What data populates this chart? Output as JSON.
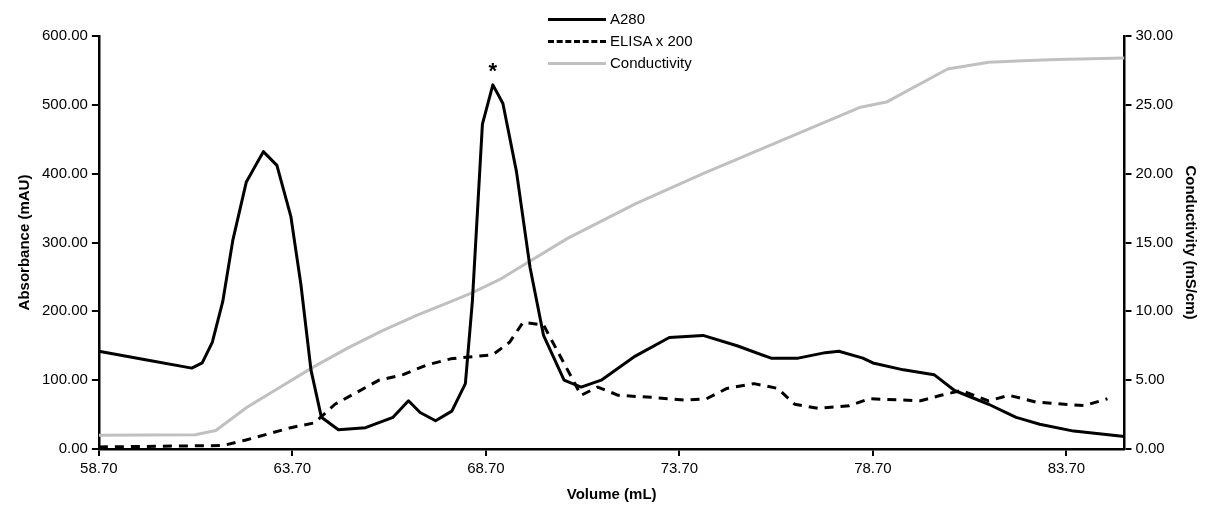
{
  "chart_data": {
    "type": "line",
    "xlabel": "Volume (mL)",
    "ylabel": "Absorbance (mAU)",
    "y2label": "Conductivity (mS/cm)",
    "xlim": [
      58.7,
      85.2
    ],
    "ylim": [
      0,
      600
    ],
    "y2lim": [
      0,
      30
    ],
    "xticks": [
      {
        "value": 58.7,
        "label": "58.70"
      },
      {
        "value": 63.7,
        "label": "63.70"
      },
      {
        "value": 68.7,
        "label": "68.70"
      },
      {
        "value": 73.7,
        "label": "73.70"
      },
      {
        "value": 78.7,
        "label": "78.70"
      },
      {
        "value": 83.7,
        "label": "83.70"
      }
    ],
    "yticks": [
      {
        "value": 0,
        "label": "0.00"
      },
      {
        "value": 100,
        "label": "100.00"
      },
      {
        "value": 200,
        "label": "200.00"
      },
      {
        "value": 300,
        "label": "300.00"
      },
      {
        "value": 400,
        "label": "400.00"
      },
      {
        "value": 500,
        "label": "500.00"
      },
      {
        "value": 600,
        "label": "600.00"
      }
    ],
    "y2ticks": [
      {
        "value": 0,
        "label": "0.00"
      },
      {
        "value": 5,
        "label": "5.00"
      },
      {
        "value": 10,
        "label": "10.00"
      },
      {
        "value": 15,
        "label": "15.00"
      },
      {
        "value": 20,
        "label": "20.00"
      },
      {
        "value": 25,
        "label": "25.00"
      },
      {
        "value": 30,
        "label": "30.00"
      }
    ],
    "legend": "top",
    "grid": false,
    "marker": "none",
    "annotations": [
      {
        "text": "*",
        "x": 68.88,
        "y": 529
      }
    ],
    "series": [
      {
        "name": "A280",
        "color": "#000000",
        "line_style": "solid",
        "x": [
          58.7,
          59.87,
          61.1,
          61.37,
          61.63,
          61.9,
          62.16,
          62.51,
          62.95,
          63.3,
          63.66,
          63.92,
          64.18,
          64.45,
          64.89,
          65.59,
          66.3,
          66.7,
          67.0,
          67.4,
          67.82,
          68.17,
          68.35,
          68.61,
          68.88,
          69.14,
          69.49,
          69.84,
          70.19,
          70.72,
          71.16,
          71.68,
          72.56,
          73.44,
          74.31,
          75.19,
          76.07,
          76.77,
          77.47,
          77.82,
          78.44,
          78.7,
          79.49,
          80.28,
          80.81,
          81.69,
          82.4,
          83.01,
          83.89,
          85.2
        ],
        "values": [
          142,
          130,
          117.5,
          125,
          155,
          214,
          303,
          388,
          432,
          412,
          338,
          239,
          115,
          46,
          28,
          31,
          46,
          70,
          53,
          41,
          55,
          95,
          214,
          472,
          529,
          502,
          403,
          264,
          165,
          100,
          90,
          100,
          135,
          162,
          165,
          150,
          132,
          132,
          140,
          142,
          132,
          125,
          115,
          108,
          85,
          65,
          46,
          36,
          26,
          18
        ]
      },
      {
        "name": "ELISA x 200",
        "color": "#000000",
        "line_style": "dashed",
        "x": [
          58.7,
          61.9,
          62.5,
          63.66,
          64.27,
          64.8,
          65.94,
          66.56,
          67.17,
          67.79,
          68.88,
          69.31,
          69.66,
          70.19,
          70.81,
          71.16,
          71.59,
          72.12,
          72.99,
          73.88,
          74.4,
          74.93,
          75.63,
          76.24,
          76.68,
          77.3,
          78.09,
          78.61,
          79.93,
          80.46,
          80.99,
          81.69,
          82.22,
          82.93,
          84.16,
          84.76
        ],
        "values": [
          3,
          5,
          13,
          31,
          38,
          65,
          100,
          108,
          122,
          131,
          137,
          155,
          184,
          180,
          115,
          78,
          90,
          78,
          75,
          71,
          73,
          88,
          95,
          88,
          65,
          59,
          63,
          73,
          70,
          78,
          85,
          70,
          78,
          68,
          63,
          73
        ]
      },
      {
        "name": "Conductivity",
        "color": "#c0c0c0",
        "line_style": "solid",
        "axis": "y2",
        "x": [
          58.7,
          61.19,
          61.72,
          62.51,
          63.39,
          64.27,
          65.15,
          66.03,
          66.91,
          67.79,
          68.31,
          69.05,
          70.81,
          72.56,
          74.31,
          76.07,
          78.35,
          79.05,
          80.63,
          81.69,
          83.45,
          85.2
        ],
        "values": [
          0.99,
          1.04,
          1.34,
          3.0,
          4.5,
          6.0,
          7.36,
          8.6,
          9.7,
          10.7,
          11.3,
          12.3,
          15.3,
          17.8,
          20.0,
          22.1,
          24.8,
          25.2,
          27.6,
          28.1,
          28.3,
          28.4
        ]
      }
    ]
  }
}
